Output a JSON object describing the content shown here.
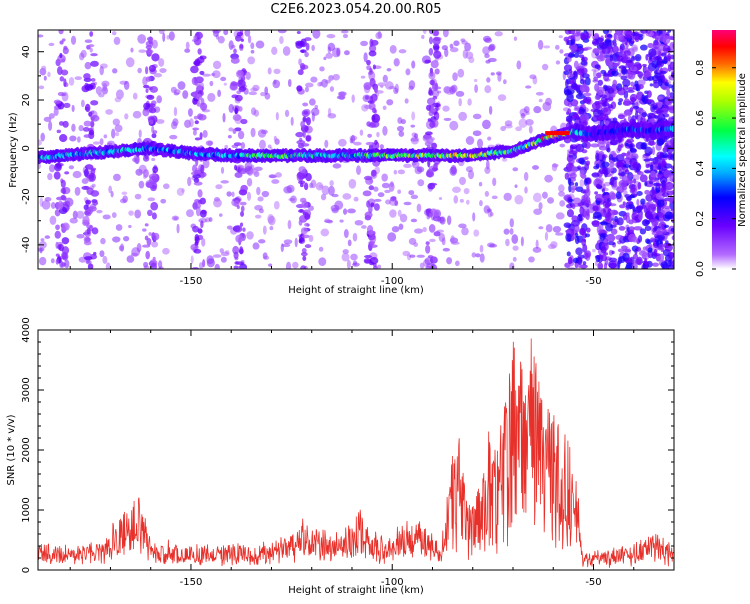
{
  "figure": {
    "title": "C2E6.2023.054.20.00.R05"
  },
  "colors": {
    "snr_line": "#e8302a",
    "colormap": [
      "#ffffff",
      "#8f00ff",
      "#0000ff",
      "#00ffff",
      "#00ff00",
      "#ffff00",
      "#ff0000",
      "#ff007f"
    ]
  },
  "chart_data": [
    {
      "type": "heatmap",
      "title": "C2E6.2023.054.20.00.R05",
      "xlabel": "Height of straight line (km)",
      "ylabel": "Frequency (Hz)",
      "xlim": [
        -188,
        -30
      ],
      "ylim": [
        -50,
        49
      ],
      "x_ticks": [
        -150,
        -100,
        -50
      ],
      "y_ticks": [
        -40,
        -20,
        0,
        20,
        40
      ],
      "colorbar": {
        "label": "Normalized spectral amplitude",
        "range": [
          0.0,
          0.95
        ],
        "ticks": [
          0.0,
          0.2,
          0.4,
          0.6,
          0.8
        ]
      },
      "signal_track": {
        "description_points_x": [
          -188,
          -175,
          -160,
          -150,
          -140,
          -130,
          -120,
          -110,
          -100,
          -90,
          -80,
          -70,
          -60,
          -55,
          -50,
          -45,
          -40,
          -35,
          -32
        ],
        "frequency_y": [
          -4,
          -2,
          0,
          -2,
          -3,
          -3,
          -3,
          -3,
          -3,
          -3,
          -3,
          -1,
          5,
          7,
          6,
          7,
          8,
          7,
          8
        ],
        "peak_amplitude": [
          0.5,
          0.55,
          0.5,
          0.45,
          0.5,
          0.7,
          0.55,
          0.55,
          0.8,
          0.75,
          0.85,
          0.6,
          0.95,
          0.6,
          0.3,
          0.35,
          0.4,
          0.35,
          0.45
        ]
      },
      "noise_columns_x": [
        -182,
        -175,
        -160,
        -148,
        -138,
        -122,
        -105,
        -90,
        -54,
        -47,
        -41,
        -35,
        -31
      ]
    },
    {
      "type": "line",
      "xlabel": "Height of straight line (km)",
      "ylabel": "SNR (10 * v/v)",
      "xlim": [
        -188,
        -30
      ],
      "ylim": [
        0,
        4000
      ],
      "x_ticks": [
        -150,
        -100,
        -50
      ],
      "y_ticks": [
        0,
        1000,
        2000,
        3000,
        4000
      ],
      "grid": false,
      "series": [
        {
          "x": [
            -188,
            -180,
            -172,
            -168,
            -165,
            -163,
            -160,
            -150,
            -145,
            -140,
            -130,
            -122,
            -115,
            -110,
            -108,
            -105,
            -100,
            -98,
            -95,
            -90,
            -88,
            -85,
            -84,
            -83,
            -82,
            -80,
            -78,
            -76,
            -74,
            -72,
            -70,
            -68,
            -66,
            -64,
            -62,
            -60,
            -58,
            -56,
            -54,
            -53,
            -45,
            -40,
            -35,
            -30
          ],
          "y": [
            300,
            280,
            350,
            650,
            800,
            900,
            350,
            300,
            280,
            300,
            300,
            600,
            400,
            550,
            750,
            450,
            350,
            600,
            700,
            400,
            300,
            1500,
            1950,
            1800,
            1200,
            900,
            1300,
            2300,
            1700,
            2400,
            3100,
            3000,
            3500,
            3200,
            2100,
            2300,
            1800,
            2000,
            1800,
            200,
            250,
            300,
            450,
            300
          ]
        }
      ]
    }
  ]
}
